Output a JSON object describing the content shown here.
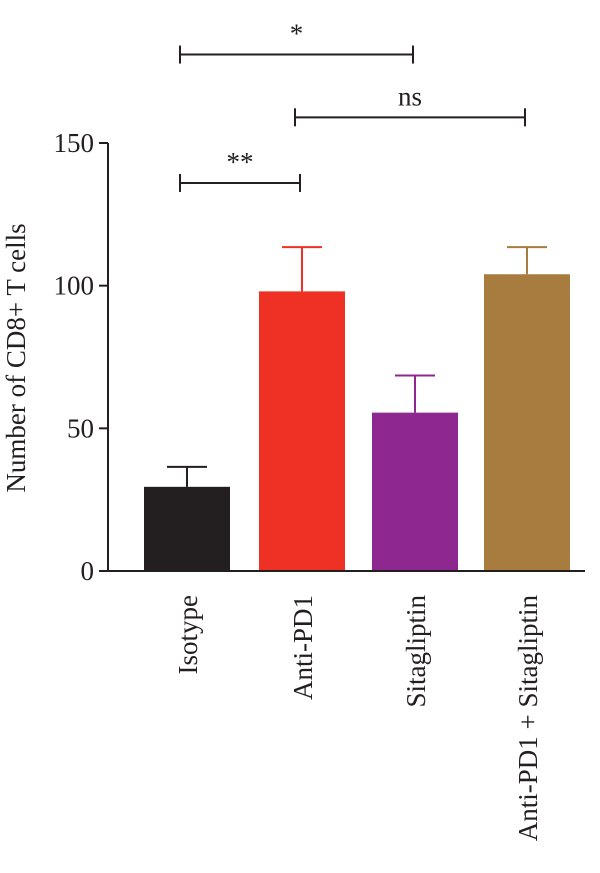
{
  "chart_data": {
    "type": "bar",
    "title": "",
    "xlabel": "",
    "ylabel": "Number of CD8+ T cells",
    "ylim": [
      0,
      150
    ],
    "yticks": [
      0,
      50,
      100,
      150
    ],
    "categories": [
      "Isotype",
      "Anti-PD1",
      "Sitagliptin",
      "Anti-PD1 + Sitagliptin"
    ],
    "values": [
      29.5,
      98,
      55.5,
      104
    ],
    "errors": [
      7,
      15.5,
      13,
      9.5
    ],
    "bar_colors": [
      "#231f20",
      "#ee3124",
      "#8e278f",
      "#a87b3e"
    ],
    "grid": false,
    "legend": "none",
    "significance": [
      {
        "from": 0,
        "to": 2,
        "label": "*",
        "y": 181
      },
      {
        "from": 1,
        "to": 3,
        "label": "ns",
        "y": 159
      },
      {
        "from": 0,
        "to": 1,
        "label": "**",
        "y": 136
      }
    ]
  }
}
